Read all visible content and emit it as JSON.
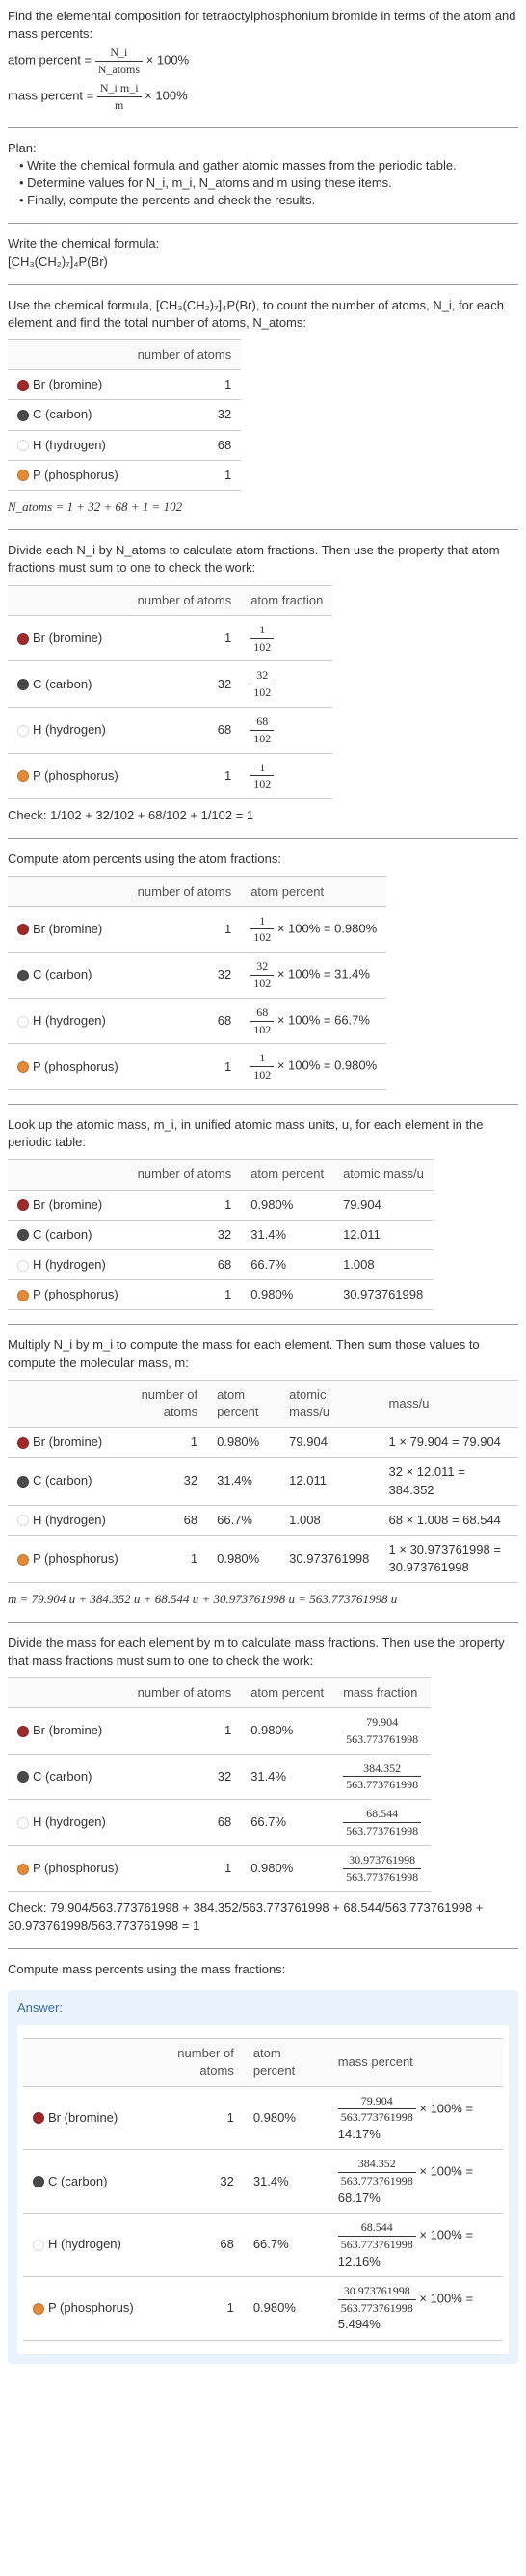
{
  "intro": {
    "line1": "Find the elemental composition for tetraoctylphosphonium bromide in terms of the atom and mass percents:",
    "atom_percent_label": "atom percent =",
    "atom_percent_frac_num": "N_i",
    "atom_percent_frac_den": "N_atoms",
    "times100": "× 100%",
    "mass_percent_label": "mass percent =",
    "mass_percent_frac_num": "N_i m_i",
    "mass_percent_frac_den": "m"
  },
  "plan": {
    "heading": "Plan:",
    "b1": "• Write the chemical formula and gather atomic masses from the periodic table.",
    "b2": "• Determine values for N_i, m_i, N_atoms and m using these items.",
    "b3": "• Finally, compute the percents and check the results."
  },
  "formula_section": {
    "line1": "Write the chemical formula:",
    "formula": "[CH₃(CH₂)₇]₄P(Br)"
  },
  "count_section": {
    "intro": "Use the chemical formula, [CH₃(CH₂)₇]₄P(Br), to count the number of atoms, N_i, for each element and find the total number of atoms, N_atoms:",
    "headers": {
      "natoms": "number of atoms"
    },
    "sum_line": "N_atoms = 1 + 32 + 68 + 1 = 102"
  },
  "elements": [
    {
      "name": "Br (bromine)",
      "color": "#9e2b2b",
      "n": "1",
      "frac_num": "1",
      "frac_den": "102",
      "pct": "0.980%",
      "mass": "79.904",
      "mass_calc": "1 × 79.904 = 79.904",
      "massfrac_num": "79.904",
      "massfrac_den": "563.773761998",
      "masspct_num": "79.904",
      "masspct": "× 100% = 14.17%"
    },
    {
      "name": "C (carbon)",
      "color": "#4a4a4a",
      "n": "32",
      "frac_num": "32",
      "frac_den": "102",
      "pct": "31.4%",
      "mass": "12.011",
      "mass_calc": "32 × 12.011 = 384.352",
      "massfrac_num": "384.352",
      "massfrac_den": "563.773761998",
      "masspct_num": "384.352",
      "masspct": "× 100% = 68.17%"
    },
    {
      "name": "H (hydrogen)",
      "color": "#ffffff",
      "n": "68",
      "frac_num": "68",
      "frac_den": "102",
      "pct": "66.7%",
      "mass": "1.008",
      "mass_calc": "68 × 1.008 = 68.544",
      "massfrac_num": "68.544",
      "massfrac_den": "563.773761998",
      "masspct_num": "68.544",
      "masspct": "× 100% = 12.16%"
    },
    {
      "name": "P (phosphorus)",
      "color": "#e08a3a",
      "n": "1",
      "frac_num": "1",
      "frac_den": "102",
      "pct": "0.980%",
      "mass": "30.973761998",
      "mass_calc": "1 × 30.973761998 = 30.973761998",
      "massfrac_num": "30.973761998",
      "massfrac_den": "563.773761998",
      "masspct_num": "30.973761998",
      "masspct": "× 100% = 5.494%"
    }
  ],
  "atomfrac_section": {
    "intro": "Divide each N_i by N_atoms to calculate atom fractions. Then use the property that atom fractions must sum to one to check the work:",
    "headers": {
      "natoms": "number of atoms",
      "atomfrac": "atom fraction"
    },
    "check": "Check: 1/102 + 32/102 + 68/102 + 1/102 = 1"
  },
  "atompct_section": {
    "intro": "Compute atom percents using the atom fractions:",
    "headers": {
      "natoms": "number of atoms",
      "atompct": "atom percent"
    },
    "times100": " × 100% = "
  },
  "mass_lookup": {
    "intro": "Look up the atomic mass, m_i, in unified atomic mass units, u, for each element in the periodic table:",
    "headers": {
      "natoms": "number of atoms",
      "atompct": "atom percent",
      "amass": "atomic mass/u"
    }
  },
  "mass_calc": {
    "intro": "Multiply N_i by m_i to compute the mass for each element. Then sum those values to compute the molecular mass, m:",
    "headers": {
      "natoms": "number of atoms",
      "atompct": "atom percent",
      "amass": "atomic mass/u",
      "massu": "mass/u"
    },
    "sum": "m = 79.904 u + 384.352 u + 68.544 u + 30.973761998 u = 563.773761998 u"
  },
  "massfrac_section": {
    "intro": "Divide the mass for each element by m to calculate mass fractions. Then use the property that mass fractions must sum to one to check the work:",
    "headers": {
      "natoms": "number of atoms",
      "atompct": "atom percent",
      "massfrac": "mass fraction"
    },
    "check": "Check: 79.904/563.773761998 + 384.352/563.773761998 + 68.544/563.773761998 + 30.973761998/563.773761998 = 1"
  },
  "masspct_section": {
    "intro": "Compute mass percents using the mass fractions:",
    "headers": {
      "natoms": "number of atoms",
      "atompct": "atom percent",
      "masspct": "mass percent"
    },
    "answer_label": "Answer:"
  }
}
